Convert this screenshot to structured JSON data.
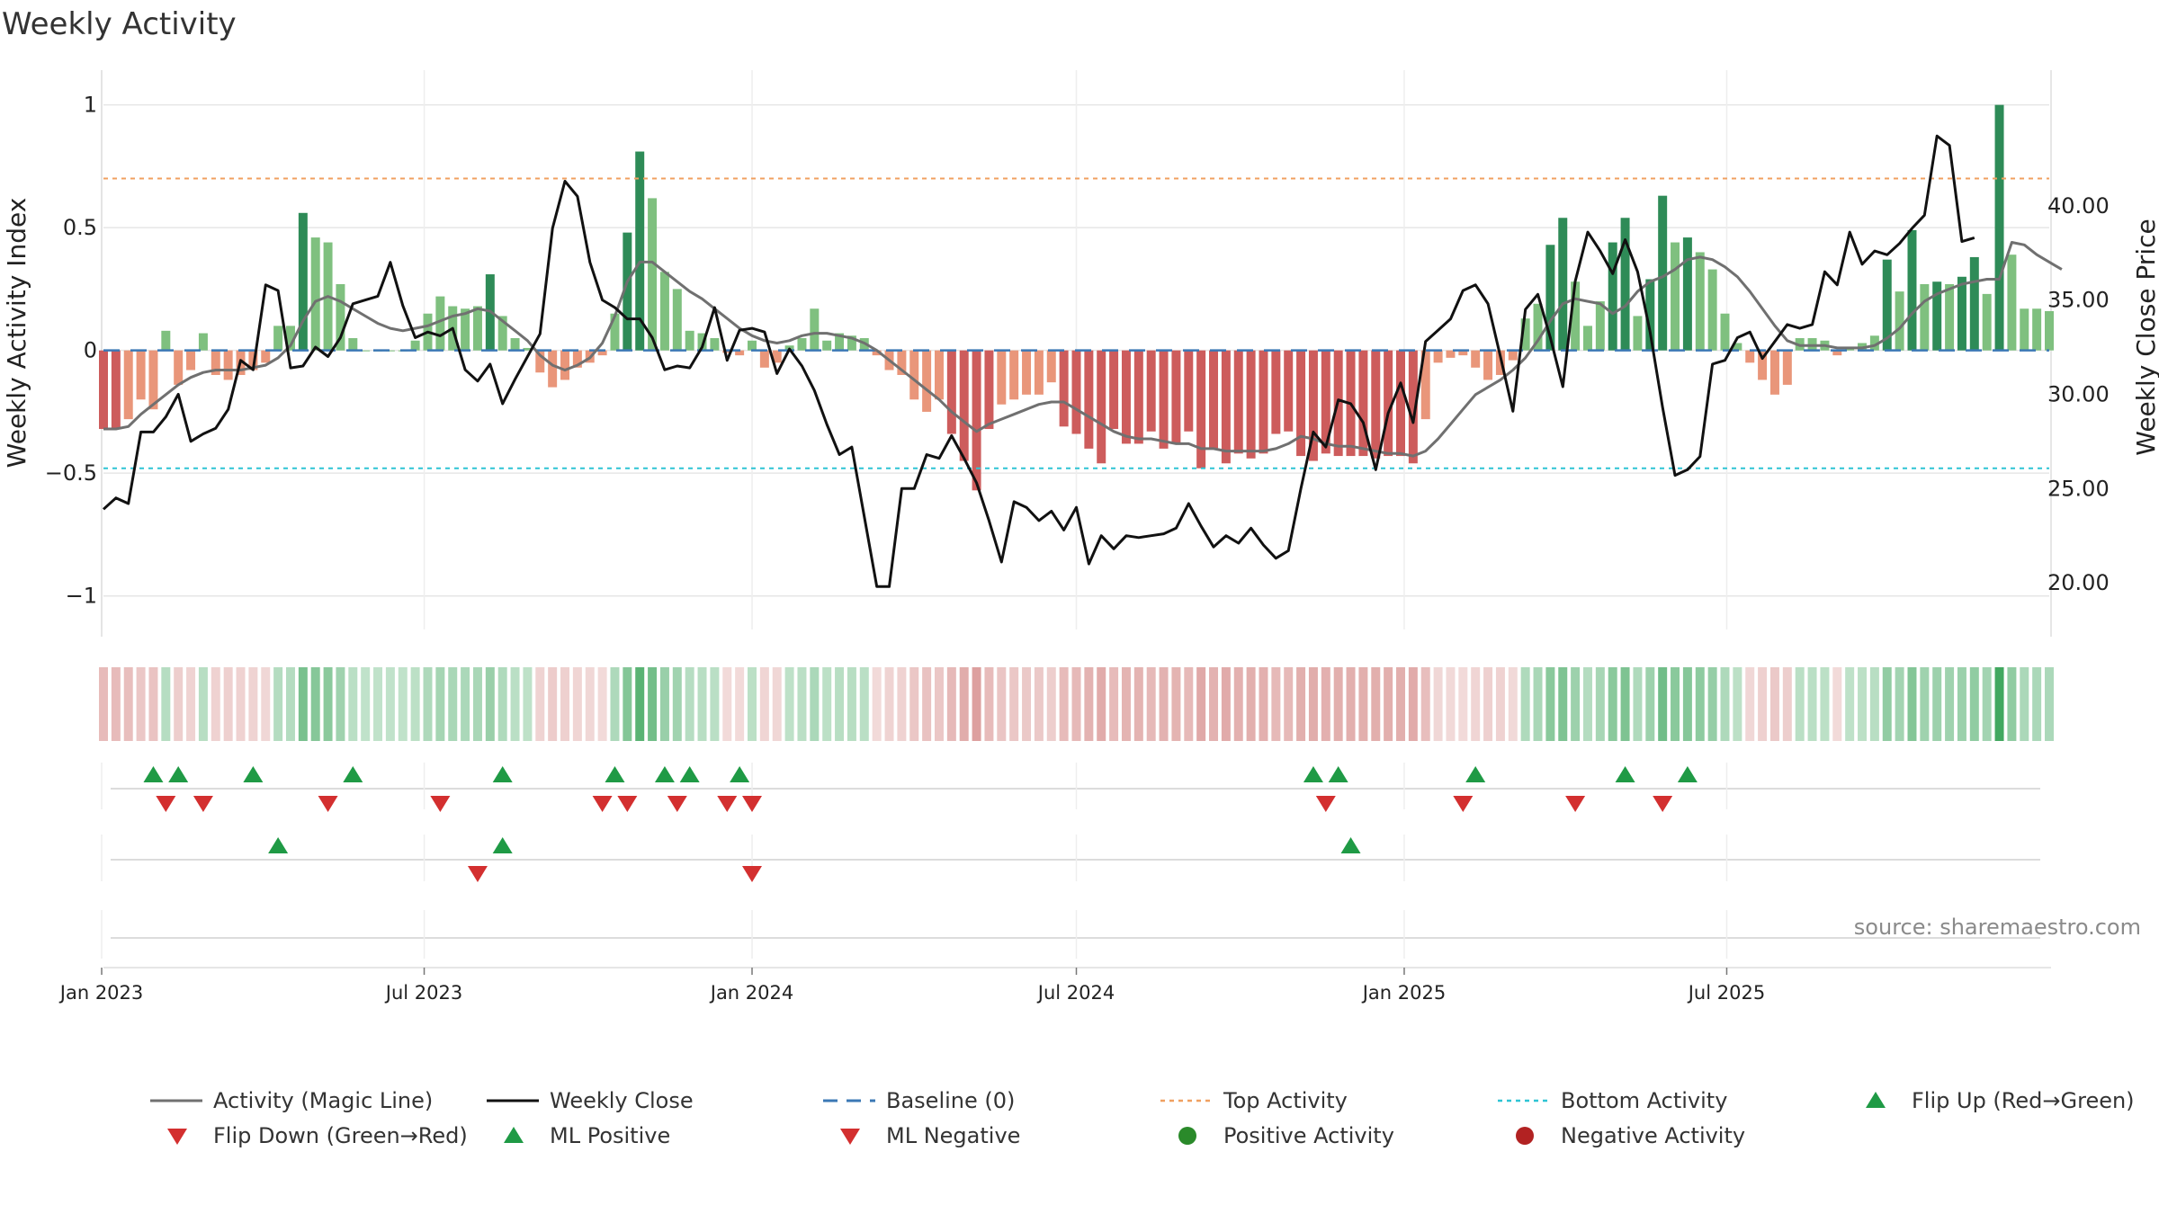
{
  "chart_data": {
    "type": "bar",
    "title": "Weekly Activity",
    "ylabel_left": "Weekly Activity Index",
    "ylabel_right": "Weekly Close Price",
    "ylim_left": [
      -1.1,
      1.05
    ],
    "ylim_right": [
      18.0,
      46.0
    ],
    "yticks_left": [
      {
        "v": 1,
        "label": "1"
      },
      {
        "v": 0.5,
        "label": "0.5"
      },
      {
        "v": 0,
        "label": "0"
      },
      {
        "v": -0.5,
        "label": "−0.5"
      },
      {
        "v": -1,
        "label": "−1"
      }
    ],
    "yticks_right": [
      {
        "v": 40,
        "label": "40.00"
      },
      {
        "v": 35,
        "label": "35.00"
      },
      {
        "v": 30,
        "label": "30.00"
      },
      {
        "v": 25,
        "label": "25.00"
      },
      {
        "v": 20,
        "label": "20.00"
      }
    ],
    "x_start": "2023-01-02",
    "x_interval_days": 7,
    "xticks": [
      {
        "date": "2023-01-01",
        "label": "Jan 2023"
      },
      {
        "date": "2023-07-01",
        "label": "Jul 2023"
      },
      {
        "date": "2024-01-01",
        "label": "Jan 2024"
      },
      {
        "date": "2024-07-01",
        "label": "Jul 2024"
      },
      {
        "date": "2025-01-01",
        "label": "Jan 2025"
      },
      {
        "date": "2025-07-01",
        "label": "Jul 2025"
      }
    ],
    "top_activity": 0.7,
    "bottom_activity": -0.48,
    "series": [
      {
        "name": "Weekly Activity Index",
        "values": [
          -0.32,
          -0.32,
          -0.28,
          -0.2,
          -0.24,
          0.08,
          -0.14,
          -0.08,
          0.07,
          -0.1,
          -0.12,
          -0.1,
          -0.08,
          -0.05,
          0.1,
          0.1,
          0.56,
          0.46,
          0.44,
          0.27,
          0.05,
          0,
          0,
          0,
          0,
          0.04,
          0.15,
          0.22,
          0.18,
          0.17,
          0.18,
          0.31,
          0.14,
          0.05,
          0.01,
          -0.09,
          -0.15,
          -0.12,
          -0.07,
          -0.05,
          -0.02,
          0.15,
          0.48,
          0.81,
          0.62,
          0.32,
          0.25,
          0.08,
          0.07,
          0.05,
          -0.01,
          -0.02,
          0.04,
          -0.07,
          -0.05,
          0.02,
          0.05,
          0.17,
          0.04,
          0.07,
          0.06,
          0.05,
          -0.02,
          -0.08,
          -0.1,
          -0.2,
          -0.25,
          -0.2,
          -0.34,
          -0.45,
          -0.57,
          -0.32,
          -0.22,
          -0.2,
          -0.18,
          -0.18,
          -0.13,
          -0.31,
          -0.34,
          -0.4,
          -0.46,
          -0.32,
          -0.38,
          -0.38,
          -0.33,
          -0.4,
          -0.38,
          -0.33,
          -0.48,
          -0.4,
          -0.46,
          -0.42,
          -0.44,
          -0.42,
          -0.34,
          -0.33,
          -0.43,
          -0.45,
          -0.42,
          -0.43,
          -0.43,
          -0.43,
          -0.44,
          -0.43,
          -0.43,
          -0.46,
          -0.28,
          -0.05,
          -0.03,
          -0.02,
          -0.07,
          -0.12,
          -0.1,
          -0.04,
          0.13,
          0.19,
          0.43,
          0.54,
          0.28,
          0.1,
          0.2,
          0.44,
          0.54,
          0.14,
          0.29,
          0.63,
          0.44,
          0.46,
          0.4,
          0.33,
          0.15,
          0.03,
          -0.05,
          -0.12,
          -0.18,
          -0.14,
          0.05,
          0.05,
          0.04,
          -0.02,
          0.01,
          0.03,
          0.06,
          0.37,
          0.24,
          0.49,
          0.27,
          0.28,
          0.27,
          0.3,
          0.38,
          0.23,
          1.0,
          0.39,
          0.17,
          0.17,
          0.16
        ]
      },
      {
        "name": "Activity (Magic Line)",
        "values": [
          -0.32,
          -0.32,
          -0.31,
          -0.26,
          -0.22,
          -0.18,
          -0.14,
          -0.11,
          -0.09,
          -0.08,
          -0.08,
          -0.08,
          -0.07,
          -0.06,
          -0.03,
          0.02,
          0.12,
          0.2,
          0.22,
          0.2,
          0.17,
          0.14,
          0.11,
          0.09,
          0.08,
          0.09,
          0.1,
          0.12,
          0.14,
          0.15,
          0.17,
          0.16,
          0.12,
          0.08,
          0.04,
          -0.02,
          -0.06,
          -0.08,
          -0.06,
          -0.03,
          0.03,
          0.14,
          0.28,
          0.36,
          0.36,
          0.32,
          0.28,
          0.24,
          0.21,
          0.17,
          0.13,
          0.09,
          0.06,
          0.04,
          0.03,
          0.04,
          0.06,
          0.07,
          0.07,
          0.06,
          0.05,
          0.03,
          0,
          -0.04,
          -0.08,
          -0.12,
          -0.16,
          -0.2,
          -0.25,
          -0.29,
          -0.33,
          -0.3,
          -0.28,
          -0.26,
          -0.24,
          -0.22,
          -0.21,
          -0.21,
          -0.24,
          -0.27,
          -0.3,
          -0.33,
          -0.35,
          -0.36,
          -0.36,
          -0.37,
          -0.38,
          -0.38,
          -0.4,
          -0.4,
          -0.41,
          -0.41,
          -0.41,
          -0.41,
          -0.4,
          -0.38,
          -0.35,
          -0.36,
          -0.38,
          -0.39,
          -0.39,
          -0.4,
          -0.41,
          -0.42,
          -0.42,
          -0.43,
          -0.41,
          -0.36,
          -0.3,
          -0.24,
          -0.18,
          -0.15,
          -0.12,
          -0.08,
          -0.03,
          0.04,
          0.12,
          0.19,
          0.21,
          0.2,
          0.19,
          0.15,
          0.18,
          0.24,
          0.28,
          0.3,
          0.33,
          0.37,
          0.38,
          0.37,
          0.34,
          0.3,
          0.24,
          0.17,
          0.1,
          0.04,
          0.02,
          0.02,
          0.02,
          0.01,
          0.01,
          0.01,
          0.02,
          0.05,
          0.09,
          0.15,
          0.2,
          0.23,
          0.25,
          0.27,
          0.28,
          0.29,
          0.29,
          0.44,
          0.43,
          0.39,
          0.36,
          0.33
        ]
      },
      {
        "name": "Weekly Close",
        "values": [
          23.9,
          24.5,
          24.2,
          28.0,
          28.0,
          28.8,
          30.0,
          27.5,
          27.9,
          28.2,
          29.2,
          31.8,
          31.3,
          35.8,
          35.5,
          31.4,
          31.5,
          32.5,
          32.0,
          33.0,
          34.8,
          35.0,
          35.2,
          37.0,
          34.7,
          33.0,
          33.3,
          33.1,
          33.5,
          31.3,
          30.7,
          31.6,
          29.5,
          30.8,
          32.0,
          33.2,
          38.8,
          41.3,
          40.5,
          37.0,
          35.0,
          34.6,
          34.0,
          34.0,
          33.0,
          31.3,
          31.5,
          31.4,
          32.5,
          34.6,
          31.8,
          33.4,
          33.5,
          33.3,
          31.1,
          32.4,
          31.5,
          30.2,
          28.4,
          26.8,
          27.2,
          23.5,
          19.8,
          19.8,
          25.0,
          25.0,
          26.8,
          26.6,
          27.8,
          26.6,
          25.3,
          23.3,
          21.1,
          24.3,
          24.0,
          23.3,
          23.8,
          22.8,
          24.0,
          21.0,
          22.5,
          21.8,
          22.5,
          22.4,
          22.5,
          22.6,
          22.9,
          24.2,
          23.0,
          21.9,
          22.5,
          22.1,
          22.9,
          22.0,
          21.3,
          21.7,
          25.0,
          28.0,
          27.2,
          29.7,
          29.5,
          28.5,
          26.0,
          29.0,
          30.6,
          28.5,
          32.8,
          33.4,
          34.0,
          35.5,
          35.8,
          34.8,
          32.0,
          29.1,
          34.5,
          35.3,
          33.0,
          30.4,
          36.0,
          38.6,
          37.6,
          36.4,
          38.2,
          36.5,
          33.3,
          29.3,
          25.7,
          26.0,
          26.7,
          31.6,
          31.8,
          33.0,
          33.3,
          31.9,
          32.8,
          33.7,
          33.5,
          33.7,
          36.5,
          35.8,
          38.6,
          36.9,
          37.6,
          37.4,
          38.0,
          38.8,
          39.5,
          43.7,
          43.2,
          38.1,
          38.3
        ]
      }
    ],
    "flip_up_top": [
      "2023-01-30",
      "2023-02-13",
      "2023-03-27",
      "2023-05-22",
      "2023-08-14",
      "2023-10-16",
      "2023-11-13",
      "2023-11-27",
      "2023-12-25",
      "2024-11-11",
      "2024-11-25",
      "2025-02-10",
      "2025-05-05",
      "2025-06-09"
    ],
    "flip_down_top": [
      "2023-02-06",
      "2023-02-27",
      "2023-05-08",
      "2023-07-10",
      "2023-10-09",
      "2023-10-23",
      "2023-11-20",
      "2023-12-18",
      "2024-01-01",
      "2024-11-18",
      "2025-02-03",
      "2025-04-07",
      "2025-05-26"
    ],
    "ml_positive": [
      "2023-04-10",
      "2023-08-14",
      "2024-12-02"
    ],
    "ml_negative": [
      "2023-07-31",
      "2024-01-01"
    ]
  },
  "legend": [
    {
      "label": "Activity (Magic Line)",
      "kind": "line",
      "color": "#707070"
    },
    {
      "label": "Weekly Close",
      "kind": "line",
      "color": "#111111"
    },
    {
      "label": "Baseline (0)",
      "kind": "dash",
      "color": "#3b78b5"
    },
    {
      "label": "Top Activity",
      "kind": "dot",
      "color": "#f0a060"
    },
    {
      "label": "Bottom Activity",
      "kind": "dot",
      "color": "#2ec4d4"
    },
    {
      "label": "Flip Up (Red→Green)",
      "kind": "tri-up",
      "color": "#1f9a45"
    },
    {
      "label": "Flip Down (Green→Red)",
      "kind": "tri-down",
      "color": "#d32f2f"
    },
    {
      "label": "ML Positive",
      "kind": "tri-up",
      "color": "#1f9a45"
    },
    {
      "label": "ML Negative",
      "kind": "tri-down",
      "color": "#d32f2f"
    },
    {
      "label": "Positive Activity",
      "kind": "circle",
      "color": "#2a8a2a"
    },
    {
      "label": "Negative Activity",
      "kind": "circle",
      "color": "#b22222"
    }
  ],
  "colors": {
    "pos_strong": "#2e8b57",
    "pos_light": "#7fc07f",
    "neg_strong": "#cd5c5c",
    "neg_light": "#e9967a",
    "magic": "#707070",
    "close": "#111111",
    "baseline": "#3b78b5",
    "top": "#f0a060",
    "bottom": "#2ec4d4",
    "up": "#1f9a45",
    "down": "#d32f2f"
  },
  "source": "source: sharemaestro.com"
}
